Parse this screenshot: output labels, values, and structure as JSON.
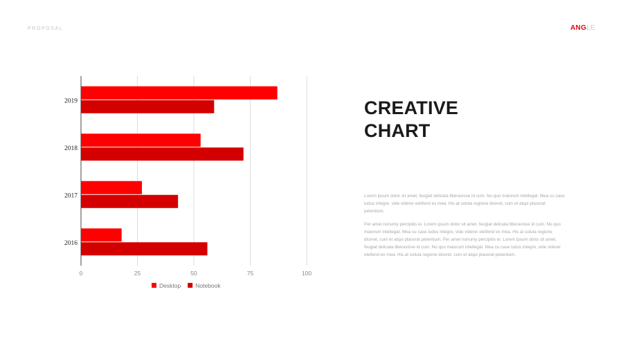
{
  "header": {
    "proposal_label": "PROPOSAL",
    "logo_primary": "ANG",
    "logo_secondary": "LE"
  },
  "headline": {
    "line1": "CREATIVE",
    "line2": "CHART"
  },
  "paragraphs": [
    "Lorem ipsum dolor sit amet, feugiat delicata liberavisse id cum. No quo maiorum intellegat. Mea cu case ludus integre, vide viderer eleifend ex mea. His at soluta regione diceret, cum et atqui placerat petentium.",
    "Per amet nonumy percipitis ei. Lorem ipsum dolor sit amet, feugiat delicata liberavisse id cum. No quo maiorum intellegat. Mea cu case ludus integre, vide viderer eleifend ex mea. His at soluta regione diceret, cum et atqui placerat petentium. Per amet nonumy percipitis ei. Lorem ipsum dolor sit amet, feugiat delicata liberavisse id cum. No quo maiorum intellegat. Mea cu case ludus integre, vide viderer eleifend ex mea. His at soluta regione diceret, cum et atqui placerat petentium."
  ],
  "colors": {
    "desktop": "#ff0000",
    "notebook": "#d40000",
    "grid": "#dddddd",
    "axis": "#444444",
    "tick_text": "#888888"
  },
  "chart_data": {
    "type": "bar",
    "orientation": "horizontal",
    "categories": [
      "2019",
      "2018",
      "2017",
      "2016"
    ],
    "series": [
      {
        "name": "Desktop",
        "values": [
          87,
          53,
          27,
          18
        ]
      },
      {
        "name": "Notebook",
        "values": [
          59,
          72,
          43,
          56
        ]
      }
    ],
    "xlim": [
      0,
      100
    ],
    "xticks": [
      0,
      25,
      50,
      75,
      100
    ],
    "grid": true,
    "legend": "bottom"
  }
}
